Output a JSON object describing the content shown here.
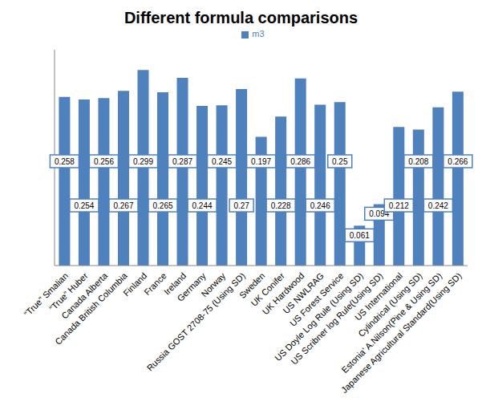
{
  "chart_data": {
    "type": "bar",
    "title": "Different formula comparisons",
    "categories": [
      "“True” Smalian",
      "“True” Huber",
      "Canada Alberta",
      "Canada British Columbia",
      "Finland",
      "France",
      "Ireland",
      "Germany",
      "Norway",
      "Russia GOST 2708-75 (Using SD)",
      "Sweden",
      "UK Conifer",
      "UK Hardwood",
      "US NWLRAG",
      "US Forest Service",
      "US Doyle Log Rule (Using SD)",
      "US Scribner log Rule(Using SD)",
      "US International",
      "Cylindrical (Using SD)",
      "Estonia' A.Nilson(Pine & Using SD)",
      "Japanese Agricultural Standard(Using SD)"
    ],
    "series": [
      {
        "name": "m3",
        "color": "#4f81bd",
        "values": [
          0.258,
          0.254,
          0.256,
          0.267,
          0.299,
          0.265,
          0.287,
          0.244,
          0.245,
          0.27,
          0.197,
          0.228,
          0.286,
          0.246,
          0.25,
          0.061,
          0.094,
          0.212,
          0.208,
          0.242,
          0.266
        ]
      }
    ],
    "ylim": [
      0,
      0.33
    ],
    "tick_labels": "x",
    "grid": false,
    "legend": "top",
    "data_labels": true
  }
}
